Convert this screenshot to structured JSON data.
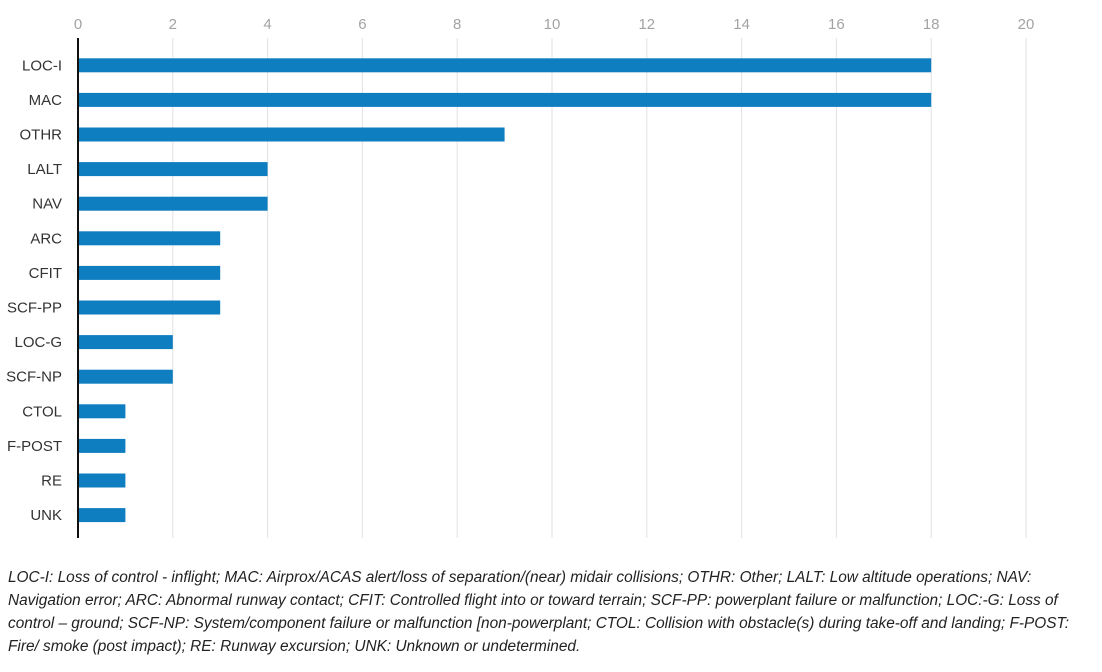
{
  "chart_data": {
    "type": "bar",
    "orientation": "horizontal",
    "categories": [
      "LOC-I",
      "MAC",
      "OTHR",
      "LALT",
      "NAV",
      "ARC",
      "CFIT",
      "SCF-PP",
      "LOC-G",
      "SCF-NP",
      "CTOL",
      "F-POST",
      "RE",
      "UNK"
    ],
    "values": [
      18,
      18,
      9,
      4,
      4,
      3,
      3,
      3,
      2,
      2,
      1,
      1,
      1,
      1
    ],
    "xlim": [
      0,
      20
    ],
    "xticks": [
      0,
      2,
      4,
      6,
      8,
      10,
      12,
      14,
      16,
      18,
      20
    ],
    "x_axis_position": "top",
    "grid": true,
    "bar_color": "#0f7ec1",
    "title": "",
    "xlabel": "",
    "ylabel": ""
  },
  "footnote": "LOC-I: Loss of control - inflight; MAC: Airprox/ACAS alert/loss of separation/(near) midair collisions; OTHR: Other; LALT: Low altitude operations; NAV: Navigation error; ARC: Abnormal runway contact; CFIT: Controlled flight into or toward terrain; SCF-PP: powerplant failure or malfunction; LOC:-G: Loss of control – ground; SCF-NP: System/component failure or malfunction [non-powerplant; CTOL: Collision with obstacle(s) during take-off and landing;  F-POST: Fire/ smoke (post impact); RE: Runway excursion; UNK: Unknown or undetermined."
}
